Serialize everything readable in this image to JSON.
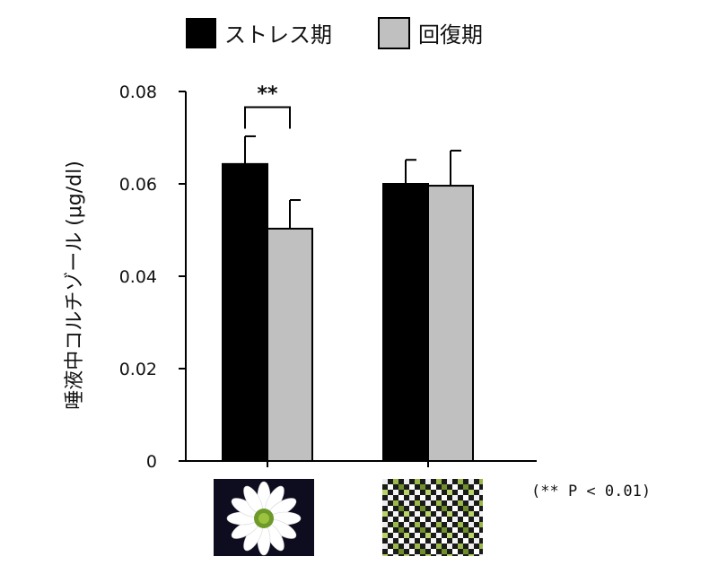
{
  "chart_data": {
    "type": "bar",
    "title": "",
    "xlabel": "",
    "ylabel": "唾液中コルチゾール (μg/dl)",
    "ylim": [
      0,
      0.08
    ],
    "yticks": [
      "0",
      "0.02",
      "0.04",
      "0.06",
      "0.08"
    ],
    "ytick_values": [
      0,
      0.02,
      0.04,
      0.06,
      0.08
    ],
    "categories": [
      "flower",
      "mosaic"
    ],
    "category_icons": [
      "white-flower-image",
      "green-white-mosaic-image"
    ],
    "series": [
      {
        "name": "ストレス期",
        "color": "#000000",
        "values": [
          0.0643,
          0.06
        ],
        "errors": [
          0.006,
          0.0052
        ]
      },
      {
        "name": "回復期",
        "color": "#c0c0c0",
        "values": [
          0.0503,
          0.0596
        ],
        "errors": [
          0.0062,
          0.0076
        ]
      }
    ],
    "legend_position": "top",
    "significance": {
      "label": "**",
      "category_index": 0
    },
    "note": "(** P < 0.01)"
  }
}
